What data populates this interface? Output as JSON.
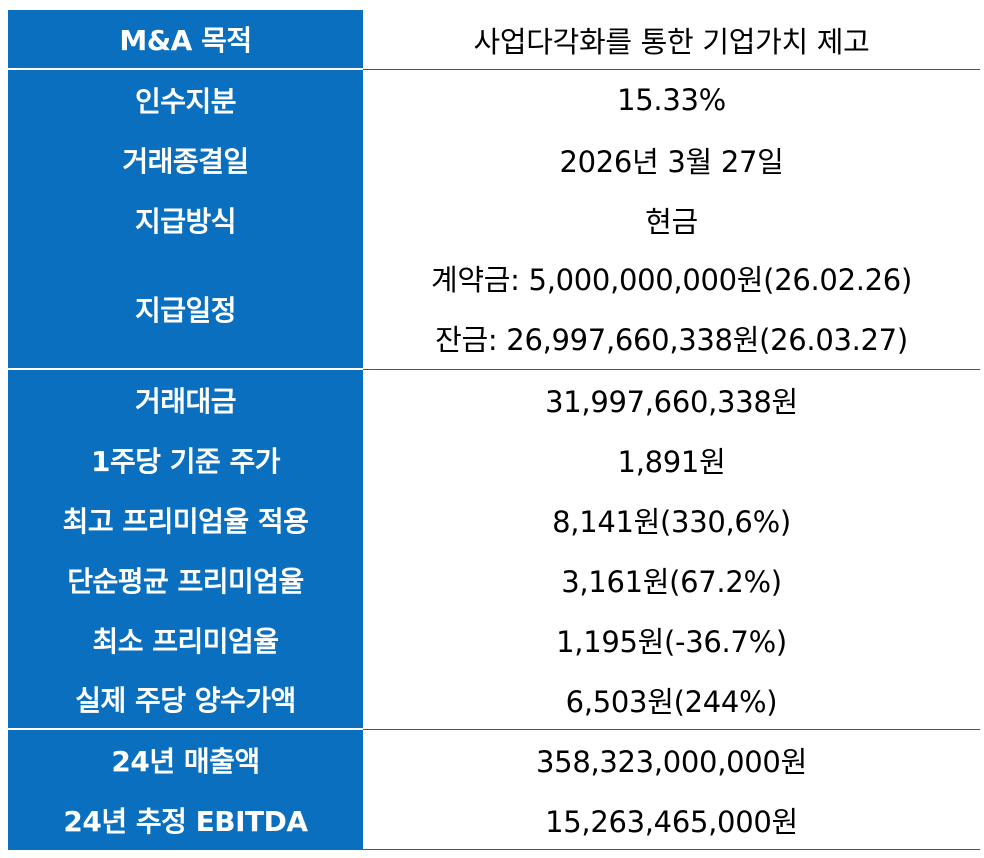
{
  "rows": [
    {
      "label": "M&A 목적",
      "values": [
        "사업다각화를 통한 기업가치 제고"
      ]
    },
    {
      "label": "인수지분",
      "values": [
        "15.33%"
      ]
    },
    {
      "label": "거래종결일",
      "values": [
        "2026년 3월 27일"
      ]
    },
    {
      "label": "지급방식",
      "values": [
        "현금"
      ]
    },
    {
      "label": "지급일정",
      "values": [
        "계약금: 5,000,000,000원(26.02.26)",
        "잔금: 26,997,660,338원(26.03.27)"
      ]
    },
    {
      "label": "거래대금",
      "values": [
        "31,997,660,338원"
      ]
    },
    {
      "label": "1주당 기준 주가",
      "values": [
        "1,891원"
      ]
    },
    {
      "label": "최고 프리미엄율 적용",
      "values": [
        "8,141원(330,6%)"
      ]
    },
    {
      "label": "단순평균 프리미엄율",
      "values": [
        "3,161원(67.2%)"
      ]
    },
    {
      "label": "최소 프리미엄율",
      "values": [
        "1,195원(-36.7%)"
      ]
    },
    {
      "label": "실제 주당 양수가액",
      "values": [
        "6,503원(244%)"
      ]
    },
    {
      "label": "24년 매출액",
      "values": [
        "358,323,000,000원"
      ]
    },
    {
      "label": "24년 추정 EBITDA",
      "values": [
        "15,263,465,000원"
      ]
    }
  ],
  "colors": {
    "label_bg": "#0b6fbf",
    "label_text": "#ffffff",
    "divider": "#1f5fa8"
  }
}
